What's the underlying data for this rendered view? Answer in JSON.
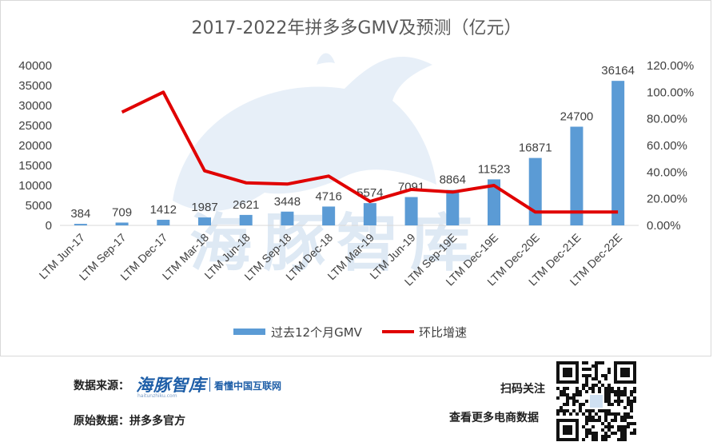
{
  "chart_data": {
    "type": "bar",
    "title": "2017-2022年拼多多GMV及预测（亿元）",
    "categories": [
      "LTM Jun-17",
      "LTM Sep-17",
      "LTM Dec-17",
      "LTM Mar-18",
      "LTM Jun-18",
      "LTM Sep-18",
      "LTM Dec-18",
      "LTM Mar-19",
      "LTM Jun-19",
      "LTM Sep-19E",
      "LTM Dec-19E",
      "LTM Dec-20E",
      "LTM Dec-21E",
      "LTM Dec-22E"
    ],
    "series": [
      {
        "name": "过去12个月GMV",
        "type": "bar",
        "axis": "left",
        "color": "#5b9bd5",
        "values": [
          384,
          709,
          1412,
          1987,
          2621,
          3448,
          4716,
          5574,
          7091,
          8864,
          11523,
          16871,
          24700,
          36164
        ],
        "labels": [
          "384",
          "709",
          "1412",
          "1987",
          "2621",
          "3448",
          "4716",
          "5574",
          "7091",
          "8864",
          "11523",
          "16871",
          "24700",
          "36164"
        ]
      },
      {
        "name": "环比增速",
        "type": "line",
        "axis": "right",
        "color": "#e00000",
        "values": [
          null,
          0.85,
          1.0,
          0.41,
          0.32,
          0.31,
          0.37,
          0.18,
          0.27,
          0.25,
          0.3,
          0.1,
          0.1,
          0.1
        ]
      }
    ],
    "y_left": {
      "min": 0,
      "max": 40000,
      "ticks": [
        "0",
        "5000",
        "10000",
        "15000",
        "20000",
        "25000",
        "30000",
        "35000",
        "40000"
      ]
    },
    "y_right": {
      "min": 0,
      "max": 1.2,
      "ticks": [
        "0.00%",
        "20.00%",
        "40.00%",
        "60.00%",
        "80.00%",
        "100.00%",
        "120.00%"
      ]
    },
    "grid": false,
    "legend_position": "bottom"
  },
  "watermark": {
    "text": "海豚智库",
    "color": "#6f9fd1"
  },
  "footer": {
    "source_label": "数据来源：",
    "logo_text": "海豚智库",
    "logo_small_text": "haitunzhiku.com",
    "slogan": "看懂中国互联网",
    "origin_label": "原始数据：拼多多官方",
    "scan_label": "扫码关注",
    "more_label": "查看更多电商数据"
  }
}
